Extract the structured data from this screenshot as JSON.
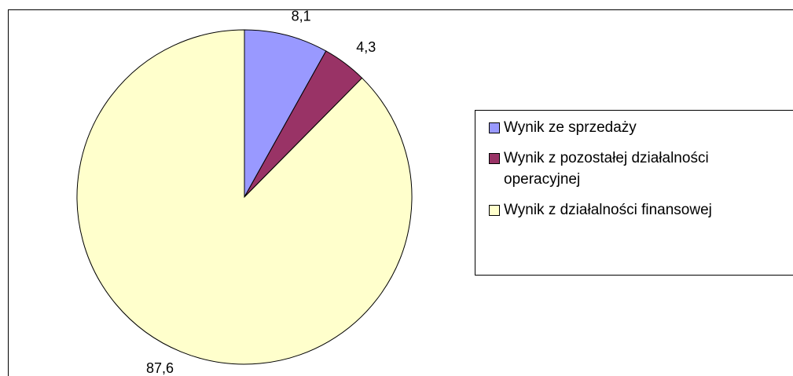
{
  "chart_data": {
    "type": "pie",
    "categories": [
      "Wynik ze sprzedaży",
      "Wynik z pozostałej działalności operacyjnej",
      "Wynik z działalności finansowej"
    ],
    "values": [
      8.1,
      4.3,
      87.6
    ],
    "value_labels": [
      "8,1",
      "4,3",
      "87,6"
    ],
    "colors": [
      "#9999ff",
      "#993366",
      "#ffffcc"
    ],
    "legend": "right"
  }
}
